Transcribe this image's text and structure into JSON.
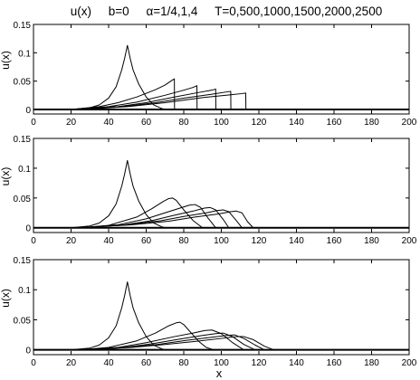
{
  "figure": {
    "title": "u(x)     b=0     α=1/4,1,4     T=0,500,1000,1500,2000,2500",
    "xlabel": "x"
  },
  "chart_data": [
    {
      "type": "line",
      "ylabel": "u(x)",
      "xlim": [
        0,
        200
      ],
      "ylim": [
        -0.008,
        0.15
      ],
      "xticks": [
        0,
        20,
        40,
        60,
        80,
        100,
        120,
        140,
        160,
        180,
        200
      ],
      "yticks": [
        0,
        0.05,
        0.1,
        0.15
      ],
      "yticklabels": [
        "0",
        "0.05",
        "0.1",
        "0.15"
      ],
      "grid": false,
      "series": [
        {
          "x": [
            0,
            20,
            30,
            35,
            40,
            44,
            47,
            48.5,
            50,
            51.5,
            53,
            56,
            60,
            64,
            68,
            70,
            200
          ],
          "y": [
            0,
            0,
            0.003,
            0.008,
            0.02,
            0.04,
            0.07,
            0.09,
            0.113,
            0.09,
            0.07,
            0.045,
            0.022,
            0.008,
            0.002,
            0,
            0
          ]
        },
        {
          "x": [
            0,
            20,
            35,
            45,
            55,
            65,
            70,
            74,
            75,
            75.1,
            200
          ],
          "y": [
            0,
            0,
            0.005,
            0.012,
            0.022,
            0.035,
            0.043,
            0.052,
            0.054,
            0,
            0
          ]
        },
        {
          "x": [
            0,
            20,
            40,
            55,
            70,
            80,
            85,
            87,
            87.1,
            200
          ],
          "y": [
            0,
            0,
            0.005,
            0.013,
            0.025,
            0.034,
            0.039,
            0.042,
            0,
            0
          ]
        },
        {
          "x": [
            0,
            20,
            45,
            60,
            75,
            88,
            95,
            97,
            97.1,
            200
          ],
          "y": [
            0,
            0,
            0.005,
            0.012,
            0.022,
            0.03,
            0.034,
            0.036,
            0,
            0
          ]
        },
        {
          "x": [
            0,
            25,
            50,
            65,
            80,
            95,
            103,
            105,
            105.1,
            200
          ],
          "y": [
            0,
            0,
            0.006,
            0.012,
            0.02,
            0.027,
            0.031,
            0.032,
            0,
            0
          ]
        },
        {
          "x": [
            0,
            25,
            50,
            70,
            90,
            105,
            111,
            113,
            113.1,
            200
          ],
          "y": [
            0,
            0,
            0.005,
            0.012,
            0.021,
            0.026,
            0.028,
            0.029,
            0,
            0
          ]
        }
      ]
    },
    {
      "type": "line",
      "ylabel": "u(x)",
      "xlim": [
        0,
        200
      ],
      "ylim": [
        -0.008,
        0.15
      ],
      "xticks": [
        0,
        20,
        40,
        60,
        80,
        100,
        120,
        140,
        160,
        180,
        200
      ],
      "yticks": [
        0,
        0.05,
        0.1,
        0.15
      ],
      "yticklabels": [
        "0",
        "0.05",
        "0.1",
        "0.15"
      ],
      "grid": false,
      "series": [
        {
          "x": [
            0,
            20,
            30,
            35,
            40,
            44,
            47,
            48.5,
            50,
            51.5,
            53,
            56,
            60,
            64,
            68,
            70,
            200
          ],
          "y": [
            0,
            0,
            0.003,
            0.008,
            0.02,
            0.04,
            0.07,
            0.09,
            0.113,
            0.09,
            0.07,
            0.045,
            0.022,
            0.008,
            0.002,
            0,
            0
          ]
        },
        {
          "x": [
            0,
            25,
            40,
            55,
            63,
            69,
            72,
            74,
            76,
            80,
            85,
            90,
            200
          ],
          "y": [
            0,
            0,
            0.004,
            0.018,
            0.032,
            0.044,
            0.049,
            0.05,
            0.046,
            0.03,
            0.012,
            0,
            0
          ]
        },
        {
          "x": [
            0,
            25,
            45,
            60,
            70,
            78,
            83,
            86,
            89,
            93,
            97,
            200
          ],
          "y": [
            0,
            0,
            0.005,
            0.015,
            0.025,
            0.033,
            0.038,
            0.039,
            0.034,
            0.016,
            0,
            0
          ]
        },
        {
          "x": [
            0,
            25,
            48,
            63,
            75,
            85,
            91,
            94,
            97,
            101,
            104,
            200
          ],
          "y": [
            0,
            0,
            0.005,
            0.012,
            0.021,
            0.028,
            0.033,
            0.034,
            0.03,
            0.014,
            0,
            0
          ]
        },
        {
          "x": [
            0,
            25,
            50,
            68,
            80,
            92,
            98,
            101,
            104,
            108,
            111,
            200
          ],
          "y": [
            0,
            0,
            0.005,
            0.012,
            0.019,
            0.025,
            0.029,
            0.03,
            0.027,
            0.012,
            0,
            0
          ]
        },
        {
          "x": [
            0,
            25,
            52,
            72,
            86,
            98,
            105,
            108,
            111,
            114,
            117,
            200
          ],
          "y": [
            0,
            0,
            0.005,
            0.011,
            0.018,
            0.023,
            0.027,
            0.028,
            0.025,
            0.01,
            0,
            0
          ]
        }
      ]
    },
    {
      "type": "line",
      "ylabel": "u(x)",
      "xlim": [
        0,
        200
      ],
      "ylim": [
        -0.008,
        0.15
      ],
      "xticks": [
        0,
        20,
        40,
        60,
        80,
        100,
        120,
        140,
        160,
        180,
        200
      ],
      "yticks": [
        0,
        0.05,
        0.1,
        0.15
      ],
      "yticklabels": [
        "0",
        "0.05",
        "0.1",
        "0.15"
      ],
      "grid": false,
      "series": [
        {
          "x": [
            0,
            20,
            30,
            35,
            40,
            44,
            47,
            48.5,
            50,
            51.5,
            53,
            56,
            60,
            64,
            68,
            70,
            200
          ],
          "y": [
            0,
            0,
            0.003,
            0.008,
            0.02,
            0.04,
            0.07,
            0.09,
            0.113,
            0.09,
            0.07,
            0.045,
            0.022,
            0.008,
            0.002,
            0,
            0
          ]
        },
        {
          "x": [
            0,
            25,
            40,
            55,
            65,
            72,
            76,
            78,
            80,
            84,
            88,
            92,
            96,
            200
          ],
          "y": [
            0,
            0,
            0.004,
            0.015,
            0.028,
            0.04,
            0.045,
            0.046,
            0.042,
            0.028,
            0.014,
            0.004,
            0,
            0
          ]
        },
        {
          "x": [
            0,
            25,
            45,
            60,
            75,
            85,
            91,
            95,
            100,
            106,
            112,
            200
          ],
          "y": [
            0,
            0,
            0.004,
            0.012,
            0.022,
            0.028,
            0.032,
            0.033,
            0.027,
            0.012,
            0,
            0
          ]
        },
        {
          "x": [
            0,
            25,
            48,
            63,
            78,
            90,
            97,
            101,
            106,
            112,
            118,
            200
          ],
          "y": [
            0,
            0,
            0.004,
            0.01,
            0.018,
            0.024,
            0.027,
            0.028,
            0.022,
            0.009,
            0,
            0
          ]
        },
        {
          "x": [
            0,
            25,
            50,
            66,
            82,
            95,
            103,
            107,
            112,
            118,
            123,
            200
          ],
          "y": [
            0,
            0,
            0.004,
            0.009,
            0.016,
            0.021,
            0.024,
            0.025,
            0.019,
            0.008,
            0,
            0
          ]
        },
        {
          "x": [
            0,
            25,
            52,
            70,
            86,
            100,
            108,
            112,
            117,
            123,
            128,
            200
          ],
          "y": [
            0,
            0,
            0.004,
            0.009,
            0.014,
            0.019,
            0.022,
            0.022,
            0.017,
            0.006,
            0,
            0
          ]
        }
      ]
    }
  ]
}
